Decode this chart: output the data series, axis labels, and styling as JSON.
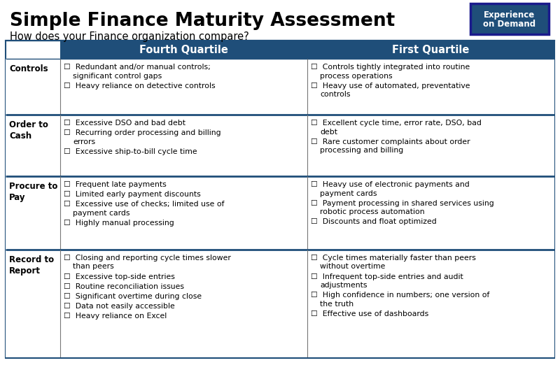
{
  "title": "Simple Finance Maturity Assessment",
  "subtitle": "How does your Finance organization compare?",
  "header_bg": "#1F4E79",
  "header_text_color": "#FFFFFF",
  "col1_header": "Fourth Quartile",
  "col2_header": "First Quartile",
  "bg_color": "#FFFFFF",
  "border_color": "#1F4E79",
  "logo_bg": "#1F4E79",
  "logo_border": "#1a1a8c",
  "rows": [
    {
      "label": "Controls",
      "fourth": [
        "Redundant and/or manual controls;\nsignificant control gaps",
        "Heavy reliance on detective controls"
      ],
      "first": [
        "Controls tightly integrated into routine\nprocess operations",
        "Heavy use of automated, preventative\ncontrols"
      ]
    },
    {
      "label": "Order to\nCash",
      "fourth": [
        "Excessive DSO and bad debt",
        "Recurring order processing and billing\nerrors",
        "Excessive ship-to-bill cycle time"
      ],
      "first": [
        "Excellent cycle time, error rate, DSO, bad\ndebt",
        "Rare customer complaints about order\nprocessing and billing"
      ]
    },
    {
      "label": "Procure to\nPay",
      "fourth": [
        "Frequent late payments",
        "Limited early payment discounts",
        "Excessive use of checks; limited use of\npayment cards",
        "Highly manual processing"
      ],
      "first": [
        "Heavy use of electronic payments and\npayment cards",
        "Payment processing in shared services using\nrobotic process automation",
        "Discounts and float optimized"
      ]
    },
    {
      "label": "Record to\nReport",
      "fourth": [
        "Closing and reporting cycle times slower\nthan peers",
        "Excessive top-side entries",
        "Routine reconciliation issues",
        "Significant overtime during close",
        "Data not easily accessible",
        "Heavy reliance on Excel"
      ],
      "first": [
        "Cycle times materially faster than peers\nwithout overtime",
        "Infrequent top-side entries and audit\nadjustments",
        "High confidence in numbers; one version of\nthe truth",
        "Effective use of dashboards"
      ]
    }
  ]
}
